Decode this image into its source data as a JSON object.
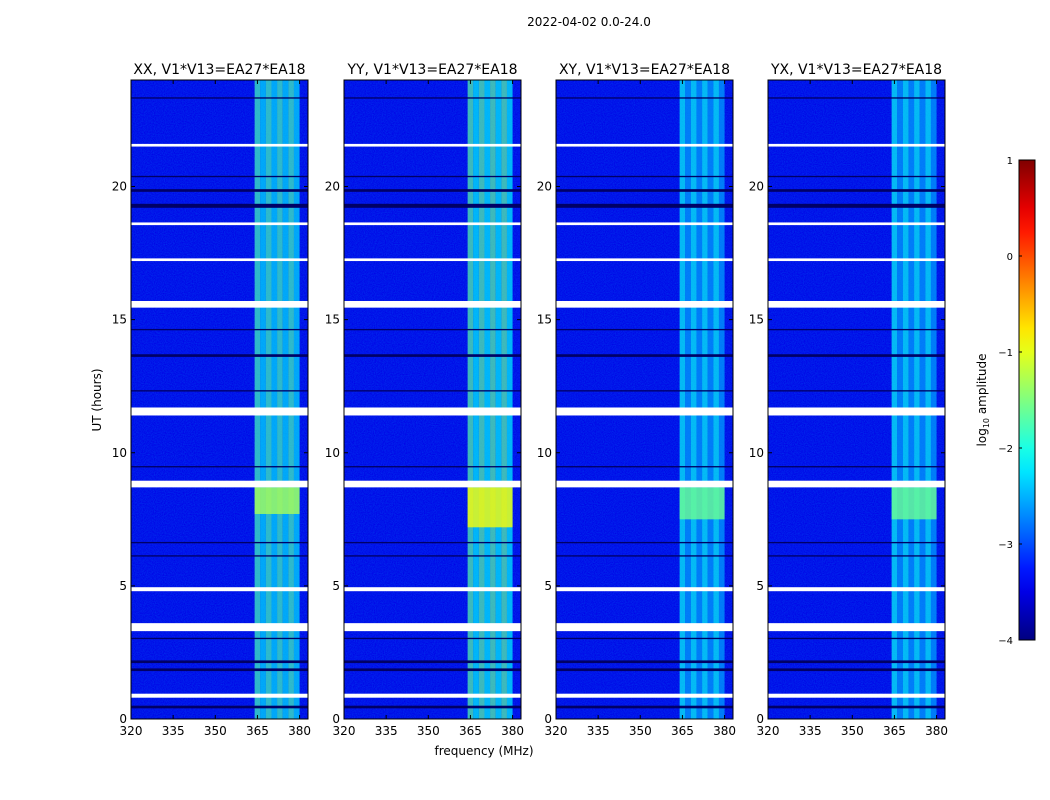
{
  "chart_data": {
    "type": "heatmap",
    "title": "2022-04-02 0.0-24.0",
    "xlabel": "frequency (MHz)",
    "ylabel": "UT (hours)",
    "xlim": [
      320,
      383
    ],
    "ylim": [
      0,
      24
    ],
    "xticks": [
      320,
      335,
      350,
      365,
      380
    ],
    "yticks": [
      0,
      5,
      10,
      15,
      20
    ],
    "panels": [
      {
        "title": "XX, V1*V13=EA27*EA18",
        "peak": -1.8,
        "bright_hours": [
          [
            7.7,
            8.7,
            -1.3
          ]
        ]
      },
      {
        "title": "YY, V1*V13=EA27*EA18",
        "peak": -1.7,
        "bright_hours": [
          [
            7.2,
            8.7,
            -0.9
          ]
        ]
      },
      {
        "title": "XY, V1*V13=EA27*EA18",
        "peak": -2.1,
        "bright_hours": [
          [
            7.5,
            8.7,
            -1.6
          ]
        ]
      },
      {
        "title": "YX, V1*V13=EA27*EA18",
        "peak": -2.1,
        "bright_hours": [
          [
            7.5,
            8.7,
            -1.6
          ]
        ]
      }
    ],
    "rfi_band_mhz": [
      364,
      380
    ],
    "background_log10_amplitude": -3.5,
    "flagged_hours": [
      [
        0.8,
        0.95
      ],
      [
        3.3,
        3.6
      ],
      [
        4.8,
        4.95
      ],
      [
        8.7,
        8.95
      ],
      [
        11.4,
        11.7
      ],
      [
        15.45,
        15.7
      ],
      [
        17.2,
        17.3
      ],
      [
        18.55,
        18.65
      ],
      [
        21.5,
        21.6
      ]
    ],
    "gap_hours": [
      [
        0.4,
        0.5
      ],
      [
        1.8,
        1.9
      ],
      [
        2.1,
        2.2
      ],
      [
        3.0,
        3.05
      ],
      [
        6.1,
        6.15
      ],
      [
        6.6,
        6.65
      ],
      [
        9.45,
        9.5
      ],
      [
        12.3,
        12.35
      ],
      [
        13.6,
        13.7
      ],
      [
        14.6,
        14.65
      ],
      [
        19.2,
        19.35
      ],
      [
        19.8,
        19.9
      ],
      [
        20.35,
        20.4
      ],
      [
        23.3,
        23.35
      ]
    ],
    "colorbar": {
      "label": "log₁₀ amplitude",
      "label_base": "log",
      "label_sub": "10",
      "label_rest": " amplitude",
      "range": [
        -4,
        1
      ],
      "ticks": [
        1,
        0,
        -1,
        -2,
        -3,
        -4
      ],
      "tick_labels": [
        "1",
        "0",
        "−1",
        "−2",
        "−3",
        "−4"
      ],
      "colormap": "jet"
    }
  }
}
